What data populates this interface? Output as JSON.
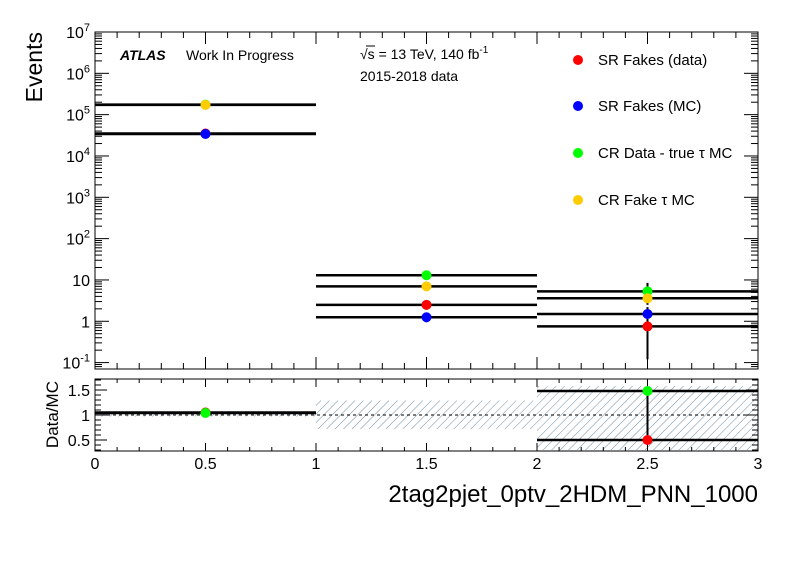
{
  "chart_data": [
    {
      "type": "scatter",
      "panel": "main",
      "yscale": "log",
      "xlim": [
        0,
        3
      ],
      "ylim": [
        0.07,
        10000000
      ],
      "ylabel": "Events",
      "y_tick_labels": [
        {
          "value": 0.1,
          "mant": "10",
          "exp": "-1"
        },
        {
          "value": 1,
          "mant": "1",
          "exp": ""
        },
        {
          "value": 10,
          "mant": "10",
          "exp": ""
        },
        {
          "value": 100,
          "mant": "10",
          "exp": "2"
        },
        {
          "value": 1000,
          "mant": "10",
          "exp": "3"
        },
        {
          "value": 10000,
          "mant": "10",
          "exp": "4"
        },
        {
          "value": 100000,
          "mant": "10",
          "exp": "5"
        },
        {
          "value": 1000000,
          "mant": "10",
          "exp": "6"
        },
        {
          "value": 10000000,
          "mant": "10",
          "exp": "7"
        }
      ],
      "series": [
        {
          "name": "SR Fakes (data)",
          "color": "#ff0000",
          "points": [
            {
              "x": 0.5,
              "y": 35000,
              "ylo": 33000,
              "yhi": 37000
            },
            {
              "x": 1.5,
              "y": 2.5,
              "ylo": 1.9,
              "yhi": 3.2
            },
            {
              "x": 2.5,
              "y": 0.75,
              "ylo": 0.12,
              "yhi": 2.0
            }
          ]
        },
        {
          "name": "SR Fakes (MC)",
          "color": "#0000ff",
          "points": [
            {
              "x": 0.5,
              "y": 34000,
              "ylo": 32500,
              "yhi": 35500
            },
            {
              "x": 1.5,
              "y": 1.25,
              "ylo": 0.95,
              "yhi": 1.6
            },
            {
              "x": 2.5,
              "y": 1.5,
              "ylo": 1.0,
              "yhi": 2.2
            }
          ]
        },
        {
          "name": "CR Data - true τ MC",
          "color": "#00ff00",
          "points": [
            {
              "x": 0.5,
              "y": 175000,
              "ylo": 170000,
              "yhi": 180000
            },
            {
              "x": 1.5,
              "y": 13,
              "ylo": 10,
              "yhi": 16
            },
            {
              "x": 2.5,
              "y": 5.3,
              "ylo": 3.3,
              "yhi": 8.5
            }
          ]
        },
        {
          "name": "CR Fake τ MC",
          "color": "#ffcc00",
          "points": [
            {
              "x": 0.5,
              "y": 172000,
              "ylo": 168000,
              "yhi": 176000
            },
            {
              "x": 1.5,
              "y": 7,
              "ylo": 5.5,
              "yhi": 8.5
            },
            {
              "x": 2.5,
              "y": 3.6,
              "ylo": 2.5,
              "yhi": 5.0
            }
          ]
        }
      ]
    },
    {
      "type": "scatter",
      "panel": "ratio",
      "xlim": [
        0,
        3
      ],
      "ylim": [
        0.28,
        1.72
      ],
      "ylabel": "Data/MC",
      "xlabel": "2tag2pjet_0ptv_2HDM_PNN_1000",
      "y_tick_labels": [
        {
          "value": 0.5,
          "text": "0.5"
        },
        {
          "value": 1,
          "text": "1"
        },
        {
          "value": 1.5,
          "text": "1.5"
        }
      ],
      "x_tick_labels": [
        {
          "value": 0,
          "text": "0"
        },
        {
          "value": 0.5,
          "text": "0.5"
        },
        {
          "value": 1,
          "text": "1"
        },
        {
          "value": 1.5,
          "text": "1.5"
        },
        {
          "value": 2,
          "text": "2"
        },
        {
          "value": 2.5,
          "text": "2.5"
        },
        {
          "value": 3,
          "text": "3"
        }
      ],
      "uncertainty_band": [
        {
          "x0": 0,
          "x1": 1,
          "lo": 0.97,
          "hi": 1.06
        },
        {
          "x0": 1,
          "x1": 2,
          "lo": 0.72,
          "hi": 1.29
        },
        {
          "x0": 2,
          "x1": 3,
          "lo": 0.3,
          "hi": 1.58
        }
      ],
      "series": [
        {
          "name": "SR Fakes (data)",
          "color": "#ff0000",
          "points": [
            {
              "x": 0.5,
              "y": 1.05,
              "ylo": 1.02,
              "yhi": 1.08
            },
            {
              "x": 2.5,
              "y": 0.5,
              "ylo": 0.5,
              "yhi": 0.5
            }
          ]
        },
        {
          "name": "CR Data - true τ MC",
          "color": "#00ff00",
          "points": [
            {
              "x": 0.5,
              "y": 1.04,
              "ylo": 1.02,
              "yhi": 1.07
            },
            {
              "x": 2.5,
              "y": 1.48,
              "ylo": 0.5,
              "yhi": 1.5
            }
          ]
        }
      ]
    }
  ],
  "annotations": {
    "atlas": "ATLAS",
    "status": "Work In Progress",
    "energy_sqrt": "√s",
    "energy_rest": " = 13 TeV, 140 fb",
    "energy_exp": "-1",
    "dataset": "2015-2018 data"
  }
}
